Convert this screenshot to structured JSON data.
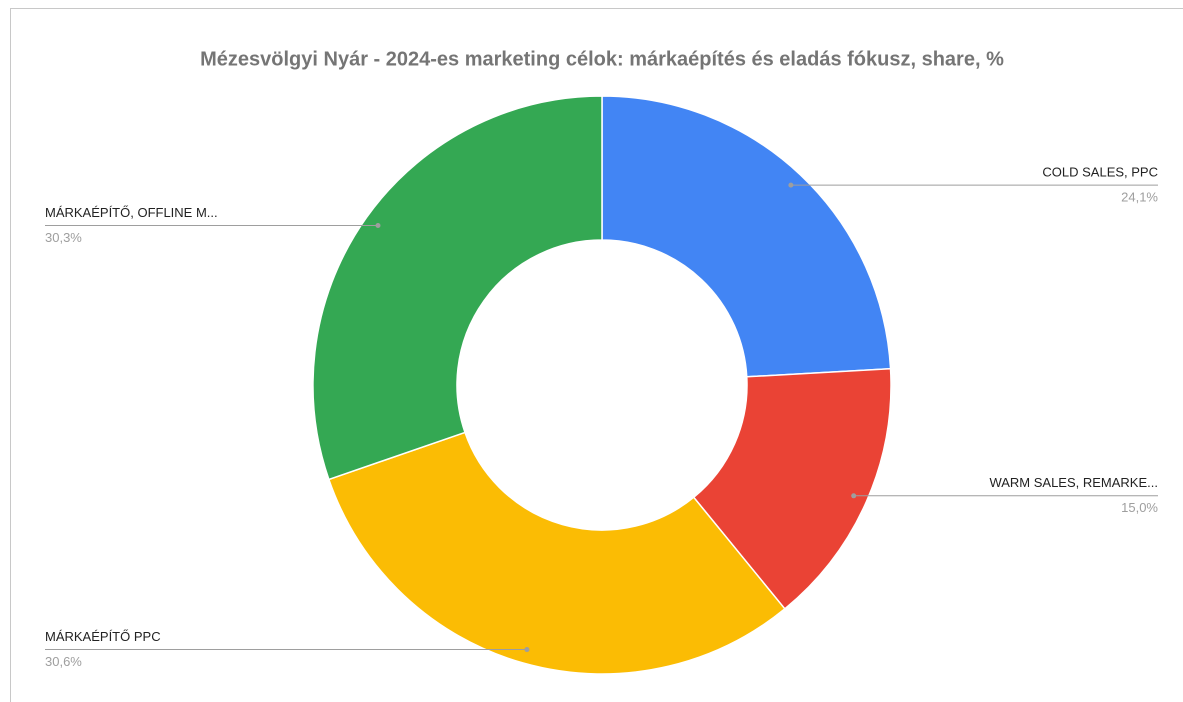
{
  "chart_data": {
    "type": "donut",
    "title": "Mézesvölgyi Nyár - 2024-es marketing célok: márkaépítés és eladás fókusz, share, %",
    "categories": [
      "COLD SALES, PPC",
      "WARM SALES, REMARKE...",
      "MÁRKAÉPÍTŐ PPC",
      "MÁRKAÉPÍTŐ, OFFLINE M..."
    ],
    "values": [
      24.1,
      15.0,
      30.6,
      30.3
    ],
    "value_labels": [
      "24,1%",
      "15,0%",
      "30,6%",
      "30,3%"
    ],
    "colors": [
      "#4285f4",
      "#ea4335",
      "#fbbc04",
      "#34a853"
    ]
  }
}
